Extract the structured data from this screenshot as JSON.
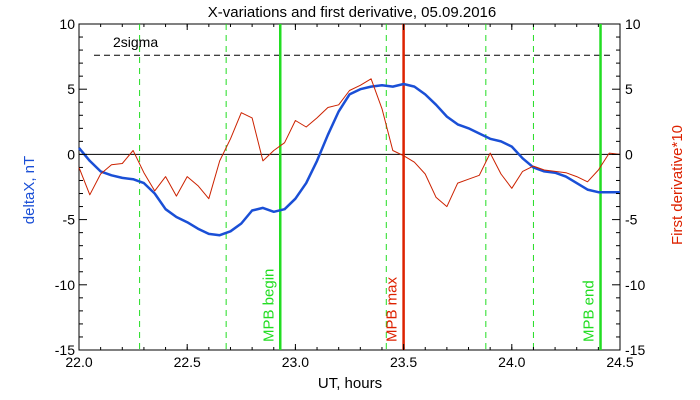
{
  "chart_data": {
    "type": "line",
    "title": "X-variations and first derivative, 05.09.2016",
    "xlabel": "UT, hours",
    "ylabel_left": "deltaX, nT",
    "ylabel_right": "First derivative*10",
    "xlim": [
      22.0,
      24.5
    ],
    "ylim": [
      -15,
      10
    ],
    "x_ticks": [
      "22.0",
      "22.5",
      "23.0",
      "23.5",
      "24.0",
      "24.5"
    ],
    "y_ticks_left": [
      "-15",
      "-10",
      "-5",
      "0",
      "5",
      "10"
    ],
    "y_ticks_right": [
      "-15",
      "-10",
      "-5",
      "0",
      "5",
      "10"
    ],
    "sigma_label": "2sigma",
    "sigma_level": 7.6,
    "grid": false,
    "colors": {
      "deltaX": "#1a4fd6",
      "derivative": "#cc2200",
      "green": "#22dd22",
      "mpb_max": "#dd2200",
      "axis": "#000000"
    },
    "series": [
      {
        "name": "deltaX, nT",
        "x": [
          22.0,
          22.05,
          22.1,
          22.15,
          22.2,
          22.25,
          22.3,
          22.35,
          22.4,
          22.45,
          22.5,
          22.55,
          22.6,
          22.65,
          22.7,
          22.75,
          22.8,
          22.85,
          22.9,
          22.95,
          23.0,
          23.05,
          23.1,
          23.15,
          23.2,
          23.25,
          23.3,
          23.35,
          23.4,
          23.45,
          23.5,
          23.55,
          23.6,
          23.65,
          23.7,
          23.75,
          23.8,
          23.85,
          23.9,
          23.95,
          24.0,
          24.05,
          24.1,
          24.15,
          24.2,
          24.25,
          24.3,
          24.35,
          24.4,
          24.45,
          24.5
        ],
        "values": [
          0.5,
          -0.5,
          -1.3,
          -1.6,
          -1.8,
          -1.9,
          -2.2,
          -3.0,
          -4.2,
          -4.8,
          -5.2,
          -5.7,
          -6.1,
          -6.2,
          -5.9,
          -5.3,
          -4.3,
          -4.1,
          -4.4,
          -4.2,
          -3.4,
          -2.2,
          -0.5,
          1.5,
          3.3,
          4.6,
          5.0,
          5.2,
          5.3,
          5.2,
          5.4,
          5.2,
          4.6,
          3.8,
          2.9,
          2.3,
          2.0,
          1.6,
          1.2,
          1.0,
          0.6,
          -0.3,
          -1.0,
          -1.3,
          -1.4,
          -1.7,
          -2.2,
          -2.7,
          -2.9,
          -2.9,
          -2.9
        ]
      },
      {
        "name": "First derivative*10",
        "x": [
          22.0,
          22.05,
          22.1,
          22.15,
          22.2,
          22.25,
          22.3,
          22.35,
          22.4,
          22.45,
          22.5,
          22.55,
          22.6,
          22.65,
          22.7,
          22.75,
          22.8,
          22.85,
          22.9,
          22.95,
          23.0,
          23.05,
          23.1,
          23.15,
          23.2,
          23.25,
          23.3,
          23.35,
          23.4,
          23.45,
          23.5,
          23.55,
          23.6,
          23.65,
          23.7,
          23.75,
          23.8,
          23.85,
          23.9,
          23.95,
          24.0,
          24.05,
          24.1,
          24.15,
          24.2,
          24.25,
          24.3,
          24.35,
          24.4,
          24.45,
          24.5
        ],
        "values": [
          -1.0,
          -3.1,
          -1.5,
          -0.8,
          -0.7,
          0.3,
          -1.4,
          -2.8,
          -1.7,
          -3.2,
          -1.7,
          -2.4,
          -3.4,
          -0.5,
          1.2,
          3.2,
          2.8,
          -0.5,
          0.3,
          0.9,
          2.6,
          2.1,
          2.8,
          3.6,
          3.8,
          4.9,
          5.3,
          5.8,
          3.5,
          0.3,
          -0.1,
          -0.6,
          -1.5,
          -3.3,
          -4.0,
          -2.2,
          -1.9,
          -1.6,
          0.1,
          -1.5,
          -2.6,
          -1.3,
          -0.9,
          -1.2,
          -1.3,
          -1.4,
          -1.7,
          -2.1,
          -1.2,
          0.1,
          0.0
        ]
      }
    ],
    "reference_lines": [
      {
        "x": 22.28,
        "label": "",
        "style": "dashed-green"
      },
      {
        "x": 22.68,
        "label": "",
        "style": "dashed-green"
      },
      {
        "x": 22.93,
        "label": "MPB begin",
        "style": "solid-green"
      },
      {
        "x": 23.42,
        "label": "",
        "style": "dashed-green"
      },
      {
        "x": 23.5,
        "label": "MPB max",
        "style": "solid-red"
      },
      {
        "x": 23.88,
        "label": "",
        "style": "dashed-green"
      },
      {
        "x": 24.1,
        "label": "",
        "style": "dashed-green"
      },
      {
        "x": 24.41,
        "label": "MPB end",
        "style": "solid-green"
      }
    ]
  }
}
